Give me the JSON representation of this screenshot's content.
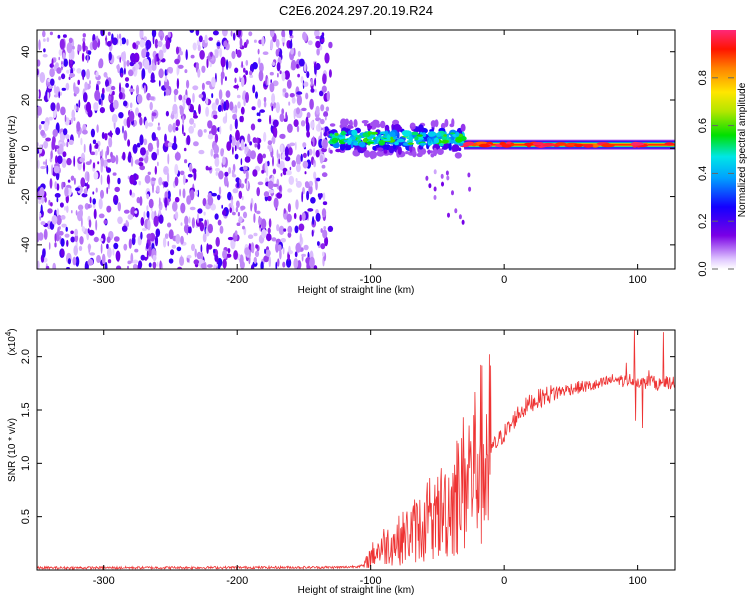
{
  "title": "C2E6.2024.297.20.19.R24",
  "colors": {
    "snr_line": "#ee3333",
    "axis": "#000000",
    "background": "#ffffff"
  },
  "chart_data": [
    {
      "type": "heatmap",
      "xlabel": "Height of straight line (km)",
      "ylabel": "Frequency (Hz)",
      "xlim": [
        -350,
        128
      ],
      "ylim": [
        -50,
        49
      ],
      "x_ticks": [
        -300,
        -200,
        -100,
        0,
        100
      ],
      "x_tick_labels": [
        "-300",
        "-200",
        "-100",
        "0",
        "100"
      ],
      "y_ticks": [
        -40,
        -20,
        0,
        20,
        40
      ],
      "y_tick_labels": [
        "-40",
        "-20",
        "0",
        "20",
        "40"
      ],
      "colorbar": {
        "label": "Normalized spectral amplitude",
        "range": [
          0,
          1
        ],
        "ticks": [
          0.0,
          0.2,
          0.4,
          0.6,
          0.8
        ],
        "tick_labels": [
          "0.0",
          "0.2",
          "0.4",
          "0.6",
          "0.8"
        ],
        "colormap": "rainbow"
      },
      "regions": [
        {
          "x_from": -350,
          "x_to": -130,
          "freq_from": -50,
          "freq_to": 49,
          "amplitude": 0.1,
          "note": "broadband noise"
        },
        {
          "x_from": -130,
          "x_to": -30,
          "freq_center": 4,
          "amplitude": 0.5
        },
        {
          "x_from": -30,
          "x_to": 128,
          "freq_center": 1.5,
          "amplitude": 0.95
        }
      ]
    },
    {
      "type": "line",
      "xlabel": "Height of straight line (km)",
      "ylabel": "SNR (10 * v/v)",
      "y_multiplier_label": "(x10",
      "y_multiplier_exp": "4",
      "xlim": [
        -350,
        128
      ],
      "ylim": [
        0,
        22500
      ],
      "x_ticks": [
        -300,
        -200,
        -100,
        0,
        100
      ],
      "x_tick_labels": [
        "-300",
        "-200",
        "-100",
        "0",
        "100"
      ],
      "y_ticks": [
        5000,
        10000,
        15000,
        20000
      ],
      "y_tick_labels": [
        "0.5",
        "1.0",
        "1.5",
        "2.0"
      ],
      "series": [
        {
          "x": [
            -350,
            -120,
            -105,
            -100,
            -90,
            -80,
            -70,
            -60,
            -50,
            -40,
            -30,
            -25,
            -20,
            -15,
            -10,
            -5,
            0,
            5,
            10,
            20,
            30,
            40,
            50,
            60,
            70,
            80,
            85,
            90,
            95,
            100,
            105,
            110,
            115,
            120,
            128
          ],
          "y": [
            200,
            250,
            400,
            1300,
            2300,
            2700,
            3500,
            4300,
            5200,
            6200,
            8200,
            9200,
            10300,
            11000,
            11300,
            12000,
            12800,
            13500,
            14600,
            15700,
            16300,
            16700,
            17000,
            17200,
            17300,
            17800,
            17900,
            17700,
            17900,
            17700,
            17500,
            17800,
            17400,
            17600,
            17500
          ]
        }
      ]
    }
  ]
}
